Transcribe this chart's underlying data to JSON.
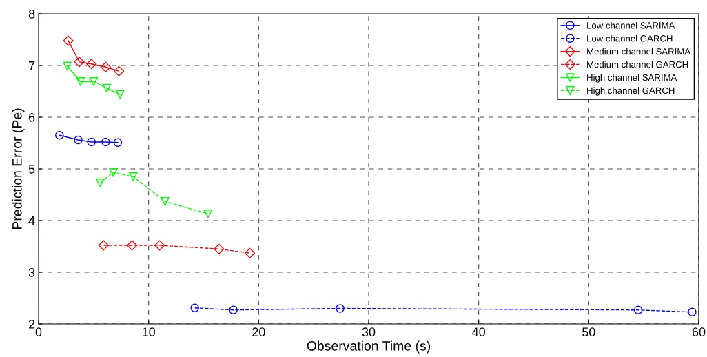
{
  "chart_data": {
    "type": "line",
    "xlabel": "Observation Time (s)",
    "ylabel": "Prediction Error (Pe)",
    "xlim": [
      0,
      60
    ],
    "ylim": [
      2,
      8
    ],
    "xticks": [
      0,
      10,
      20,
      30,
      40,
      50,
      60
    ],
    "yticks": [
      2,
      3,
      4,
      5,
      6,
      7,
      8
    ],
    "grid": true,
    "legend": "top right",
    "series": [
      {
        "name": "Low channel SARIMA",
        "color": "#0000ff",
        "marker": "circle",
        "line_style": "solid",
        "x": [
          1.9,
          3.6,
          4.8,
          6.1,
          7.2
        ],
        "values": [
          5.65,
          5.56,
          5.52,
          5.52,
          5.51
        ]
      },
      {
        "name": "Low channel GARCH",
        "color": "#0000ff",
        "marker": "circle",
        "line_style": "dashed",
        "x": [
          14.2,
          17.7,
          27.4,
          54.5,
          59.4
        ],
        "values": [
          2.31,
          2.27,
          2.3,
          2.27,
          2.23
        ]
      },
      {
        "name": "Medium channel SARIMA",
        "color": "#ff0000",
        "marker": "diamond",
        "line_style": "solid",
        "x": [
          2.7,
          3.7,
          4.8,
          6.1,
          7.3
        ],
        "values": [
          7.48,
          7.07,
          7.03,
          6.97,
          6.89
        ]
      },
      {
        "name": "Medium channel GARCH",
        "color": "#ff0000",
        "marker": "diamond",
        "line_style": "dashed",
        "x": [
          5.9,
          8.5,
          11.0,
          16.4,
          19.2
        ],
        "values": [
          3.52,
          3.52,
          3.52,
          3.45,
          3.37
        ]
      },
      {
        "name": "High channel SARIMA",
        "color": "#00ff00",
        "marker": "triangle",
        "line_style": "solid",
        "x": [
          2.6,
          3.8,
          5.0,
          6.2,
          7.4
        ],
        "values": [
          6.99,
          6.69,
          6.69,
          6.56,
          6.44
        ]
      },
      {
        "name": "High channel GARCH",
        "color": "#00ff00",
        "marker": "triangle",
        "line_style": "dashed",
        "x": [
          5.6,
          6.8,
          8.6,
          11.5,
          15.4
        ],
        "values": [
          4.73,
          4.93,
          4.85,
          4.37,
          4.13
        ]
      }
    ]
  }
}
